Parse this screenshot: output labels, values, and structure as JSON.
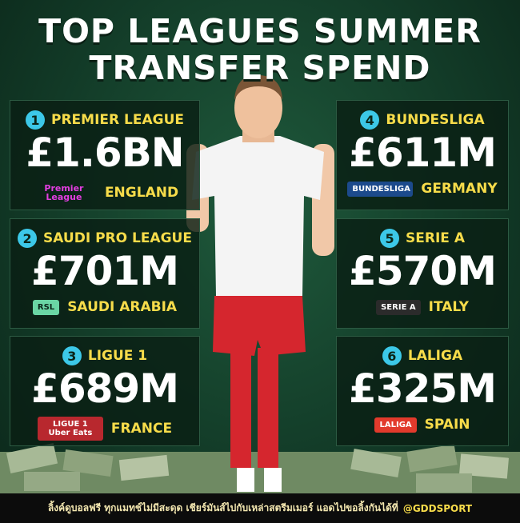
{
  "title": [
    "TOP LEAGUES SUMMER",
    "TRANSFER SPEND"
  ],
  "leagues": [
    {
      "rank": "1",
      "name": "PREMIER LEAGUE",
      "amount": "£1.6BN",
      "logo": "Premier League",
      "country": "ENGLAND"
    },
    {
      "rank": "2",
      "name": "SAUDI PRO LEAGUE",
      "amount": "£701M",
      "logo": "RSL",
      "country": "SAUDI ARABIA"
    },
    {
      "rank": "3",
      "name": "LIGUE 1",
      "amount": "£689M",
      "logo": "LIGUE 1 Uber Eats",
      "country": "FRANCE"
    },
    {
      "rank": "4",
      "name": "BUNDESLIGA",
      "amount": "£611M",
      "logo": "BUNDESLIGA",
      "country": "GERMANY"
    },
    {
      "rank": "5",
      "name": "SERIE A",
      "amount": "£570M",
      "logo": "SERIE A",
      "country": "ITALY"
    },
    {
      "rank": "6",
      "name": "LALIGA",
      "amount": "£325M",
      "logo": "LALIGA",
      "country": "SPAIN"
    }
  ],
  "footer": {
    "text": "ลิ้งค์ดูบอลฟรี ทุกแมทช์ไม่มีสะดุด เชียร์มันส์ไปกับเหล่าสตรีมเมอร์ แอดไปขอลิ้งกันได้ที่",
    "handle": "@GDDSPORT"
  }
}
